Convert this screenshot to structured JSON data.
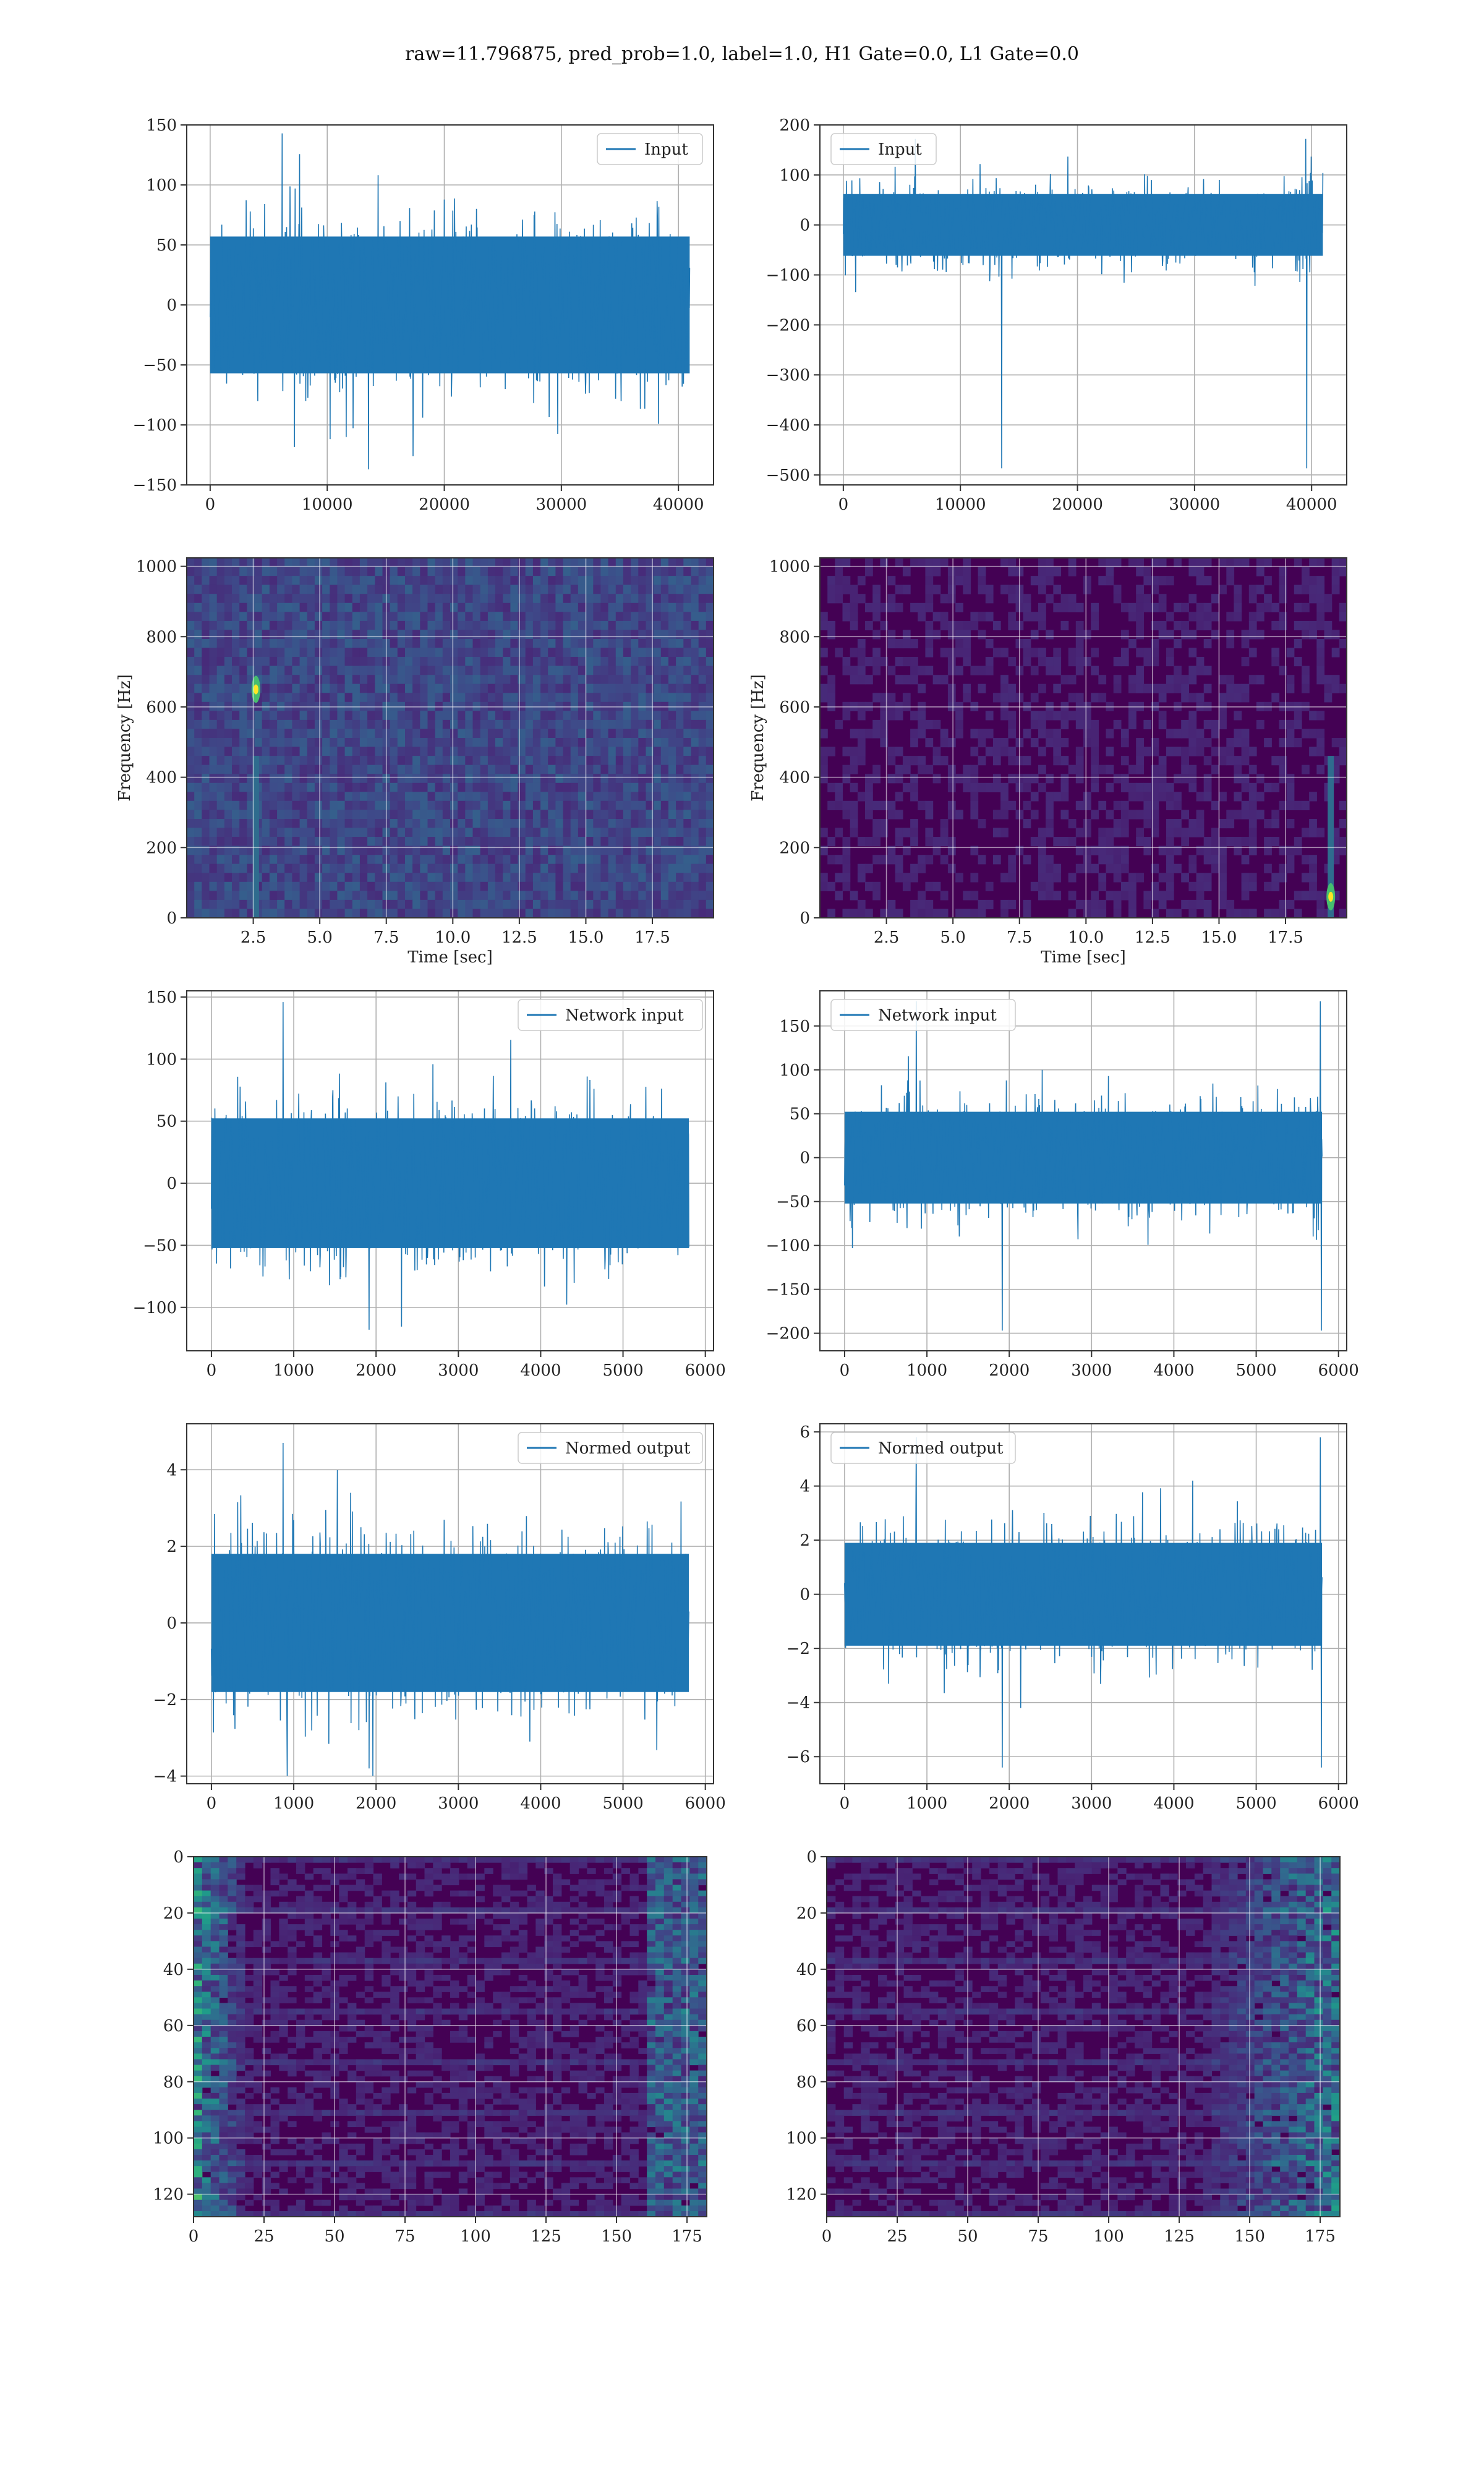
{
  "figure": {
    "suptitle": "raw=11.796875, pred_prob=1.0, label=1.0, H1 Gate=0.0, L1 Gate=0.0"
  },
  "colors": {
    "series": "#1f77b4",
    "grid": "#b0b0b0",
    "viridis_low": "#440154",
    "viridis_mid": "#21918c",
    "viridis_high": "#fde725"
  },
  "chart_data": [
    {
      "id": "h1-input",
      "type": "line",
      "series": [
        {
          "name": "Input"
        }
      ],
      "legend": "top-right",
      "grid": true,
      "xlim": [
        -2000,
        43000
      ],
      "ylim": [
        -150,
        150
      ],
      "xticks": [
        0,
        10000,
        20000,
        30000,
        40000
      ],
      "yticks": [
        -150,
        -100,
        -50,
        0,
        50,
        100,
        150
      ],
      "x_range": [
        0,
        40960
      ],
      "typical_amplitude": 60,
      "peak_max": 143,
      "peak_min": -137
    },
    {
      "id": "l1-input",
      "type": "line",
      "series": [
        {
          "name": "Input"
        }
      ],
      "legend": "top-left",
      "grid": true,
      "xlim": [
        -2000,
        43000
      ],
      "ylim": [
        -520,
        200
      ],
      "xticks": [
        0,
        10000,
        20000,
        30000,
        40000
      ],
      "yticks": [
        -500,
        -400,
        -300,
        -200,
        -100,
        0,
        100,
        200
      ],
      "x_range": [
        0,
        40960
      ],
      "typical_amplitude": 65,
      "peak_max": 172,
      "peak_min": -487,
      "glitch_x": 39500
    },
    {
      "id": "h1-spectrogram",
      "type": "heatmap",
      "grid": true,
      "xlabel": "Time [sec]",
      "ylabel": "Frequency [Hz]",
      "xlim": [
        0,
        19.8
      ],
      "ylim": [
        0,
        1024
      ],
      "xticks": [
        2.5,
        5.0,
        7.5,
        10.0,
        12.5,
        15.0,
        17.5
      ],
      "yticks": [
        0,
        200,
        400,
        600,
        800,
        1000
      ],
      "hot_spots": [
        {
          "t": 2.6,
          "f": 650
        }
      ]
    },
    {
      "id": "l1-spectrogram",
      "type": "heatmap",
      "grid": true,
      "xlabel": "Time [sec]",
      "ylabel": "Frequency [Hz]",
      "xlim": [
        0,
        19.8
      ],
      "ylim": [
        0,
        1024
      ],
      "xticks": [
        2.5,
        5.0,
        7.5,
        10.0,
        12.5,
        15.0,
        17.5
      ],
      "yticks": [
        0,
        200,
        400,
        600,
        800,
        1000
      ],
      "hot_spots": [
        {
          "t": 19.2,
          "f": 60
        }
      ]
    },
    {
      "id": "h1-network-input",
      "type": "line",
      "series": [
        {
          "name": "Network input"
        }
      ],
      "legend": "top-right",
      "grid": true,
      "xlim": [
        -300,
        6100
      ],
      "ylim": [
        -135,
        155
      ],
      "xticks": [
        0,
        1000,
        2000,
        3000,
        4000,
        5000,
        6000
      ],
      "yticks": [
        -100,
        -50,
        0,
        50,
        100,
        150
      ],
      "x_range": [
        0,
        5800
      ],
      "typical_amplitude": 55,
      "peak_max": 146,
      "peak_min": -118
    },
    {
      "id": "l1-network-input",
      "type": "line",
      "series": [
        {
          "name": "Network input"
        }
      ],
      "legend": "top-left",
      "grid": true,
      "xlim": [
        -300,
        6100
      ],
      "ylim": [
        -220,
        190
      ],
      "xticks": [
        0,
        1000,
        2000,
        3000,
        4000,
        5000,
        6000
      ],
      "yticks": [
        -200,
        -150,
        -100,
        -50,
        0,
        50,
        100,
        150
      ],
      "x_range": [
        0,
        5800
      ],
      "typical_amplitude": 55,
      "peak_max": 178,
      "peak_min": -197,
      "glitch_x": 5780
    },
    {
      "id": "h1-normed-output",
      "type": "line",
      "series": [
        {
          "name": "Normed output"
        }
      ],
      "legend": "top-right",
      "grid": true,
      "xlim": [
        -300,
        6100
      ],
      "ylim": [
        -4.2,
        5.2
      ],
      "xticks": [
        0,
        1000,
        2000,
        3000,
        4000,
        5000,
        6000
      ],
      "yticks": [
        -4,
        -2,
        0,
        2,
        4
      ],
      "x_range": [
        0,
        5800
      ],
      "typical_amplitude": 1.9,
      "peak_max": 4.7,
      "peak_min": -3.8
    },
    {
      "id": "l1-normed-output",
      "type": "line",
      "series": [
        {
          "name": "Normed output"
        }
      ],
      "legend": "top-left",
      "grid": true,
      "xlim": [
        -300,
        6100
      ],
      "ylim": [
        -7.0,
        6.3
      ],
      "xticks": [
        0,
        1000,
        2000,
        3000,
        4000,
        5000,
        6000
      ],
      "yticks": [
        -6,
        -4,
        -2,
        0,
        2,
        4,
        6
      ],
      "x_range": [
        0,
        5800
      ],
      "typical_amplitude": 2.0,
      "peak_max": 5.8,
      "peak_min": -6.4,
      "glitch_x": 5780
    },
    {
      "id": "h1-feature-map",
      "type": "heatmap",
      "grid": true,
      "xlim": [
        0,
        182
      ],
      "ylim": [
        128,
        0
      ],
      "xticks": [
        0,
        25,
        50,
        75,
        100,
        125,
        150,
        175
      ],
      "yticks": [
        0,
        20,
        40,
        60,
        80,
        100,
        120
      ],
      "activity": "left-edge"
    },
    {
      "id": "l1-feature-map",
      "type": "heatmap",
      "grid": true,
      "xlim": [
        0,
        182
      ],
      "ylim": [
        128,
        0
      ],
      "xticks": [
        0,
        25,
        50,
        75,
        100,
        125,
        150,
        175
      ],
      "yticks": [
        0,
        20,
        40,
        60,
        80,
        100,
        120
      ],
      "activity": "right-edge"
    }
  ]
}
